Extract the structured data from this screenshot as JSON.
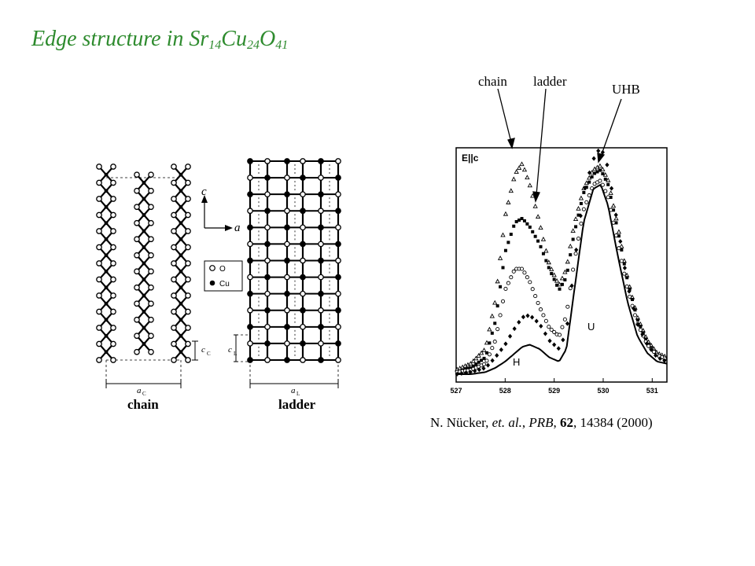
{
  "slide": {
    "title_main": "Edge structure in Sr",
    "title_sub1": "14",
    "title_cu": "Cu",
    "title_sub2": "24",
    "title_o": "O",
    "title_sub3": "41"
  },
  "structure": {
    "axis_c": "c",
    "axis_a": "a",
    "legend_o": "O",
    "legend_cu": "Cu",
    "cc_label": "c",
    "cc_sub": "C",
    "cl_label": "c",
    "cl_sub": "L",
    "ac_label": "a",
    "ac_sub": "C",
    "al_label": "a",
    "al_sub": "L",
    "chain_caption": "chain",
    "ladder_caption": "ladder"
  },
  "spectrum": {
    "polarization": "E||c",
    "x_ticks": [
      "527",
      "528",
      "529",
      "530",
      "531"
    ],
    "peak_u": "U",
    "peak_h": "H"
  },
  "annotations": {
    "chain": "chain",
    "ladder": "ladder",
    "uhb": "UHB"
  },
  "citation": {
    "authors": "N. Nücker, ",
    "etal": "et. al.",
    "sep1": ", ",
    "journal": "PRB",
    "sep2": ", ",
    "volume": "62",
    "rest": ", 14384 (2000)"
  },
  "chart_data": {
    "type": "scatter",
    "xlabel": "",
    "ylabel": "",
    "xlim": [
      527,
      531.3
    ],
    "x_ticks": [
      527,
      528,
      529,
      530,
      531
    ],
    "series": [
      {
        "marker": "open-triangle",
        "x": [
          527.0,
          527.3,
          527.6,
          527.8,
          528.0,
          528.2,
          528.35,
          528.5,
          528.7,
          528.9,
          529.1,
          529.25,
          529.4,
          529.6,
          529.8,
          529.95,
          530.1,
          530.3,
          530.5,
          530.7,
          530.9,
          531.1,
          531.3
        ],
        "y": [
          0.02,
          0.05,
          0.12,
          0.35,
          0.75,
          0.95,
          1.0,
          0.9,
          0.72,
          0.52,
          0.42,
          0.5,
          0.7,
          0.88,
          0.97,
          0.99,
          0.92,
          0.7,
          0.45,
          0.27,
          0.16,
          0.1,
          0.08
        ]
      },
      {
        "marker": "filled-square",
        "x": [
          527.0,
          527.3,
          527.6,
          527.8,
          528.0,
          528.2,
          528.35,
          528.5,
          528.7,
          528.9,
          529.1,
          529.25,
          529.4,
          529.6,
          529.8,
          529.95,
          530.1,
          530.3,
          530.5,
          530.7,
          530.9,
          531.1,
          531.3
        ],
        "y": [
          0.01,
          0.03,
          0.08,
          0.25,
          0.58,
          0.72,
          0.74,
          0.7,
          0.62,
          0.5,
          0.4,
          0.46,
          0.66,
          0.86,
          0.95,
          0.97,
          0.9,
          0.68,
          0.44,
          0.26,
          0.15,
          0.09,
          0.07
        ]
      },
      {
        "marker": "open-circle",
        "x": [
          527.0,
          527.3,
          527.6,
          527.8,
          528.0,
          528.2,
          528.35,
          528.5,
          528.7,
          528.9,
          529.1,
          529.25,
          529.4,
          529.6,
          529.8,
          529.95,
          530.1,
          530.3,
          530.5,
          530.7,
          530.9,
          531.1,
          531.3
        ],
        "y": [
          0.01,
          0.02,
          0.05,
          0.16,
          0.4,
          0.5,
          0.5,
          0.44,
          0.32,
          0.22,
          0.18,
          0.28,
          0.52,
          0.78,
          0.9,
          0.92,
          0.84,
          0.62,
          0.4,
          0.24,
          0.14,
          0.09,
          0.07
        ]
      },
      {
        "marker": "filled-diamond",
        "x": [
          527.0,
          527.3,
          527.6,
          527.8,
          528.0,
          528.2,
          528.35,
          528.5,
          528.7,
          528.9,
          529.1,
          529.25,
          529.4,
          529.6,
          529.8,
          529.95,
          530.1,
          530.3,
          530.5,
          530.7,
          530.9,
          531.1,
          531.3
        ],
        "y": [
          0.0,
          0.01,
          0.03,
          0.08,
          0.14,
          0.22,
          0.27,
          0.28,
          0.24,
          0.16,
          0.12,
          0.2,
          0.5,
          0.86,
          1.02,
          1.08,
          0.98,
          0.7,
          0.42,
          0.24,
          0.14,
          0.08,
          0.06
        ]
      },
      {
        "marker": "line",
        "x": [
          527.0,
          527.3,
          527.6,
          527.8,
          528.0,
          528.2,
          528.35,
          528.5,
          528.7,
          528.9,
          529.1,
          529.25,
          529.4,
          529.6,
          529.8,
          529.95,
          530.1,
          530.3,
          530.5,
          530.7,
          530.9,
          531.1,
          531.3
        ],
        "y": [
          0.0,
          0.0,
          0.01,
          0.03,
          0.06,
          0.1,
          0.13,
          0.14,
          0.12,
          0.08,
          0.06,
          0.12,
          0.38,
          0.72,
          0.88,
          0.9,
          0.8,
          0.56,
          0.34,
          0.18,
          0.1,
          0.06,
          0.05
        ]
      }
    ]
  }
}
